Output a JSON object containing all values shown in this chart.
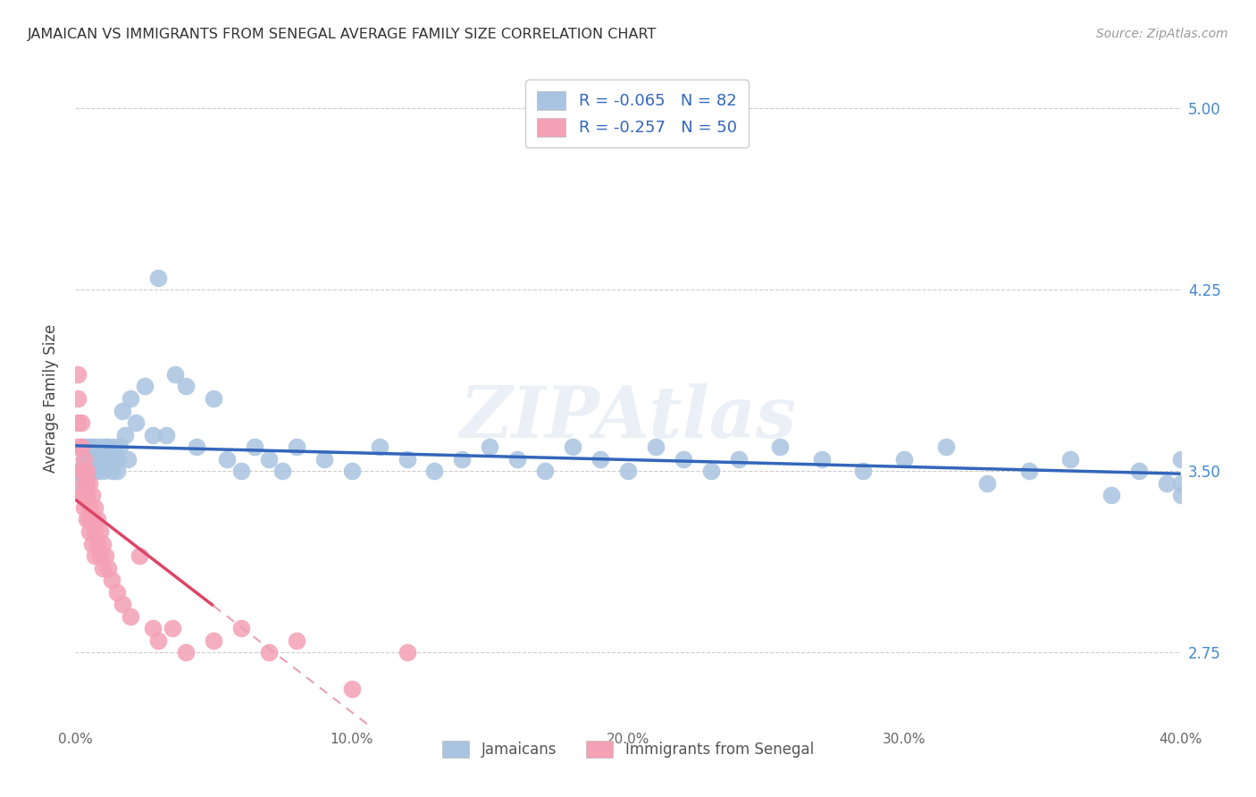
{
  "title": "JAMAICAN VS IMMIGRANTS FROM SENEGAL AVERAGE FAMILY SIZE CORRELATION CHART",
  "source": "Source: ZipAtlas.com",
  "ylabel": "Average Family Size",
  "xlabel_ticks": [
    "0.0%",
    "10.0%",
    "20.0%",
    "30.0%",
    "40.0%"
  ],
  "ytick_labels": [
    "2.75",
    "3.50",
    "4.25",
    "5.00"
  ],
  "ytick_vals": [
    2.75,
    3.5,
    4.25,
    5.0
  ],
  "xlim": [
    0.0,
    0.4
  ],
  "ylim": [
    2.45,
    5.15
  ],
  "legend1_label": "R = -0.065   N = 82",
  "legend2_label": "R = -0.257   N = 50",
  "legend_bottom": [
    "Jamaicans",
    "Immigrants from Senegal"
  ],
  "blue_color": "#a8c4e0",
  "pink_color": "#f4a0b5",
  "line_blue": "#3366bb",
  "line_pink": "#dd4466",
  "line_pink_dash": "#e8a0b0",
  "watermark": "ZIPAtlas",
  "blue_R": -0.065,
  "blue_N": 82,
  "pink_R": -0.257,
  "pink_N": 50,
  "jamaicans_x": [
    0.001,
    0.002,
    0.002,
    0.003,
    0.003,
    0.003,
    0.004,
    0.004,
    0.004,
    0.005,
    0.005,
    0.005,
    0.006,
    0.006,
    0.007,
    0.007,
    0.007,
    0.008,
    0.008,
    0.009,
    0.009,
    0.01,
    0.01,
    0.011,
    0.011,
    0.012,
    0.012,
    0.013,
    0.013,
    0.014,
    0.015,
    0.015,
    0.016,
    0.017,
    0.018,
    0.019,
    0.02,
    0.022,
    0.025,
    0.028,
    0.03,
    0.033,
    0.036,
    0.04,
    0.044,
    0.05,
    0.055,
    0.06,
    0.065,
    0.07,
    0.075,
    0.08,
    0.09,
    0.1,
    0.11,
    0.12,
    0.13,
    0.14,
    0.15,
    0.16,
    0.17,
    0.18,
    0.19,
    0.2,
    0.21,
    0.22,
    0.23,
    0.24,
    0.255,
    0.27,
    0.285,
    0.3,
    0.315,
    0.33,
    0.345,
    0.36,
    0.375,
    0.385,
    0.395,
    0.4,
    0.4,
    0.4
  ],
  "jamaicans_y": [
    3.5,
    3.6,
    3.45,
    3.55,
    3.5,
    3.6,
    3.55,
    3.5,
    3.45,
    3.6,
    3.55,
    3.5,
    3.55,
    3.6,
    3.5,
    3.55,
    3.6,
    3.55,
    3.5,
    3.55,
    3.6,
    3.55,
    3.5,
    3.6,
    3.55,
    3.55,
    3.6,
    3.55,
    3.5,
    3.6,
    3.55,
    3.5,
    3.6,
    3.75,
    3.65,
    3.55,
    3.8,
    3.7,
    3.85,
    3.65,
    4.3,
    3.65,
    3.9,
    3.85,
    3.6,
    3.8,
    3.55,
    3.5,
    3.6,
    3.55,
    3.5,
    3.6,
    3.55,
    3.5,
    3.6,
    3.55,
    3.5,
    3.55,
    3.6,
    3.55,
    3.5,
    3.6,
    3.55,
    3.5,
    3.6,
    3.55,
    3.5,
    3.55,
    3.6,
    3.55,
    3.5,
    3.55,
    3.6,
    3.45,
    3.5,
    3.55,
    3.4,
    3.5,
    3.45,
    3.55,
    3.4,
    3.45
  ],
  "senegal_x": [
    0.001,
    0.001,
    0.001,
    0.001,
    0.002,
    0.002,
    0.002,
    0.002,
    0.003,
    0.003,
    0.003,
    0.003,
    0.003,
    0.004,
    0.004,
    0.004,
    0.004,
    0.005,
    0.005,
    0.005,
    0.005,
    0.006,
    0.006,
    0.006,
    0.007,
    0.007,
    0.007,
    0.008,
    0.008,
    0.009,
    0.009,
    0.01,
    0.01,
    0.011,
    0.012,
    0.013,
    0.015,
    0.017,
    0.02,
    0.023,
    0.028,
    0.03,
    0.035,
    0.04,
    0.05,
    0.06,
    0.07,
    0.08,
    0.1,
    0.12
  ],
  "senegal_y": [
    3.8,
    3.9,
    3.7,
    3.6,
    3.7,
    3.6,
    3.5,
    3.4,
    3.55,
    3.45,
    3.4,
    3.35,
    3.5,
    3.45,
    3.4,
    3.3,
    3.5,
    3.45,
    3.35,
    3.3,
    3.25,
    3.4,
    3.3,
    3.2,
    3.35,
    3.25,
    3.15,
    3.3,
    3.2,
    3.25,
    3.15,
    3.2,
    3.1,
    3.15,
    3.1,
    3.05,
    3.0,
    2.95,
    2.9,
    3.15,
    2.85,
    2.8,
    2.85,
    2.75,
    2.8,
    2.85,
    2.75,
    2.8,
    2.6,
    2.75
  ]
}
